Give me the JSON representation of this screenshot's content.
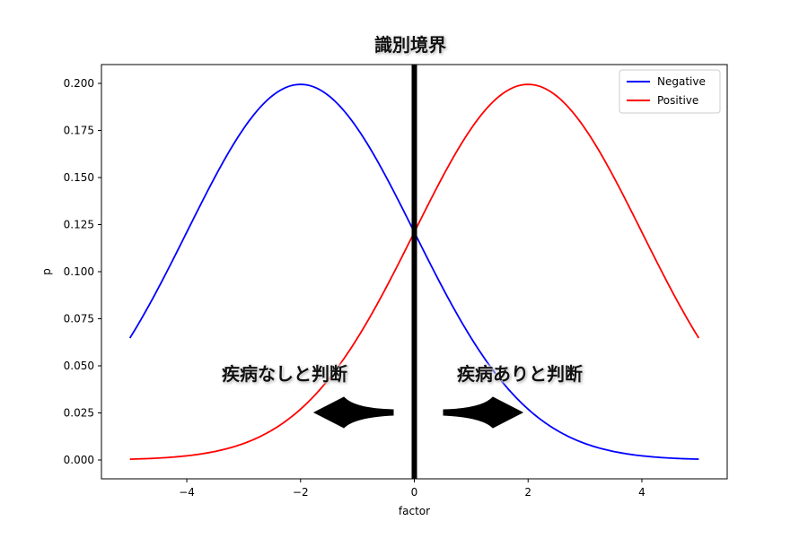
{
  "chart_data": {
    "type": "line",
    "title": "識別境界",
    "xlabel": "factor",
    "ylabel": "p",
    "xlim": [
      -5.5,
      5.5
    ],
    "ylim": [
      -0.01,
      0.21
    ],
    "xticks": [
      -4,
      -2,
      0,
      2,
      4
    ],
    "xtick_labels": [
      "−4",
      "−2",
      "0",
      "2",
      "4"
    ],
    "yticks": [
      0.0,
      0.025,
      0.05,
      0.075,
      0.1,
      0.125,
      0.15,
      0.175,
      0.2
    ],
    "ytick_labels": [
      "0.000",
      "0.025",
      "0.050",
      "0.075",
      "0.100",
      "0.125",
      "0.150",
      "0.175",
      "0.200"
    ],
    "grid": false,
    "legend_position": "top-right",
    "series": [
      {
        "name": "Negative",
        "color": "#0000ff",
        "distribution": "normal",
        "mean": -2,
        "sd": 2,
        "x_range": [
          -5,
          5
        ]
      },
      {
        "name": "Positive",
        "color": "#ff0000",
        "distribution": "normal",
        "mean": 2,
        "sd": 2,
        "x_range": [
          -5,
          5
        ]
      }
    ],
    "boundary": {
      "x": 0,
      "color": "#000000"
    },
    "annotations": [
      {
        "text": "疾病なしと判断",
        "arrow_direction": "left"
      },
      {
        "text": "疾病ありと判断",
        "arrow_direction": "right"
      }
    ]
  }
}
